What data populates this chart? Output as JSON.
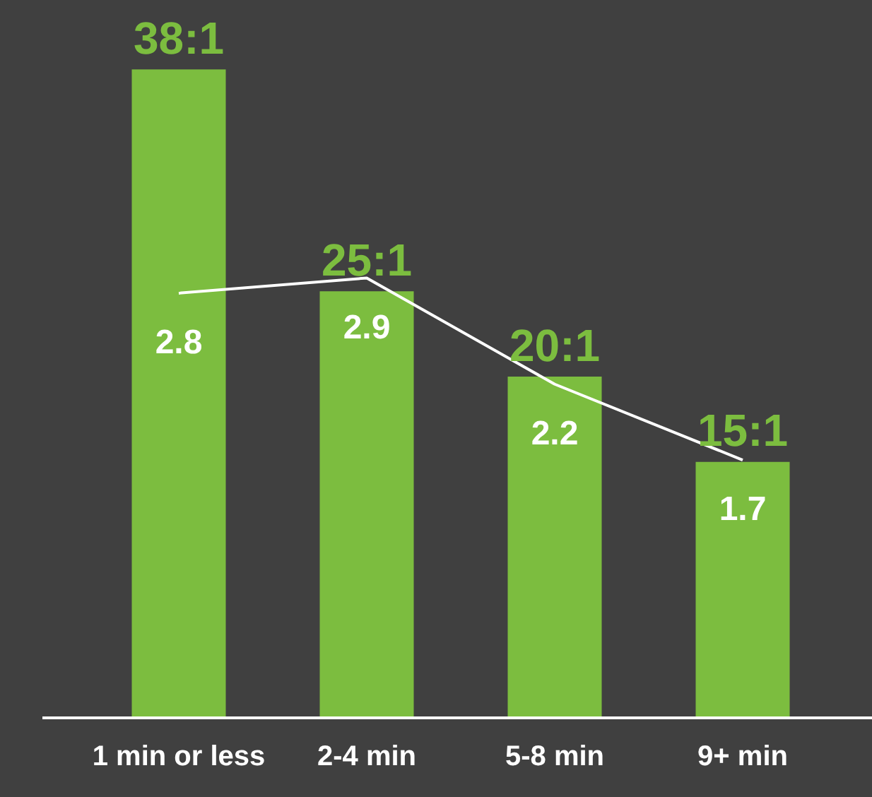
{
  "chart_data": {
    "type": "bar",
    "categories": [
      "1 min or less",
      "2-4 min",
      "5-8 min",
      "9+ min"
    ],
    "series": [
      {
        "color": "#7cbd3f",
        "values": [
          38,
          25,
          20,
          15
        ],
        "value_labels": [
          "38:1",
          "25:1",
          "20:1",
          "15:1"
        ]
      },
      {
        "type": "line",
        "color": "#ffffff",
        "axis": "y2",
        "values": [
          2.8,
          2.9,
          2.2,
          1.7
        ],
        "value_labels": [
          "2.8",
          "2.9",
          "2.2",
          "1.7"
        ],
        "marker": "none"
      }
    ],
    "grid": false,
    "legend": false
  }
}
